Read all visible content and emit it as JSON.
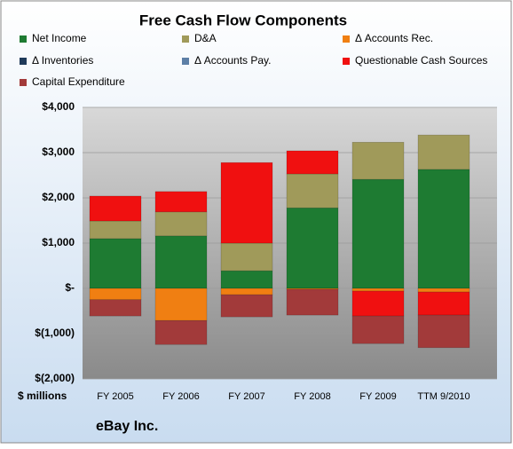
{
  "chart_data": {
    "type": "stacked_bar",
    "title": "Free Cash Flow Components",
    "y_axis_label": "$ millions",
    "footnote": "eBay Inc.",
    "categories": [
      "FY 2005",
      "FY 2006",
      "FY 2007",
      "FY 2008",
      "FY 2009",
      "TTM 9/2010"
    ],
    "series": [
      {
        "name": "Net Income",
        "color": "#1e7b32",
        "values": [
          1100,
          1160,
          390,
          1780,
          2410,
          2630
        ]
      },
      {
        "name": "D&A",
        "color": "#a09a5a",
        "values": [
          390,
          530,
          610,
          750,
          820,
          760
        ]
      },
      {
        "name": "Δ Accounts Rec.",
        "color": "#f07f12",
        "values": [
          -250,
          -710,
          -140,
          -20,
          -60,
          -80
        ]
      },
      {
        "name": "Δ Inventories",
        "color": "#1f3a5a",
        "values": [
          0,
          0,
          0,
          0,
          0,
          0
        ]
      },
      {
        "name": "Δ Accounts Pay.",
        "color": "#5d7fa6",
        "values": [
          0,
          0,
          0,
          0,
          0,
          0
        ]
      },
      {
        "name": "Questionable Cash Sources",
        "color": "#f01010",
        "values": [
          550,
          450,
          1780,
          510,
          -550,
          -510
        ]
      },
      {
        "name": "Capital Expenditure",
        "color": "#a23a3a",
        "values": [
          -360,
          -530,
          -490,
          -570,
          -610,
          -720
        ]
      }
    ],
    "ylim": [
      -2000,
      4000
    ],
    "yticks": [
      {
        "value": -2000,
        "label": "$(2,000)"
      },
      {
        "value": -1000,
        "label": "$(1,000)"
      },
      {
        "value": 0,
        "label": "$-"
      },
      {
        "value": 1000,
        "label": "$1,000"
      },
      {
        "value": 2000,
        "label": "$2,000"
      },
      {
        "value": 3000,
        "label": "$3,000"
      },
      {
        "value": 4000,
        "label": "$4,000"
      }
    ],
    "grid": true
  }
}
